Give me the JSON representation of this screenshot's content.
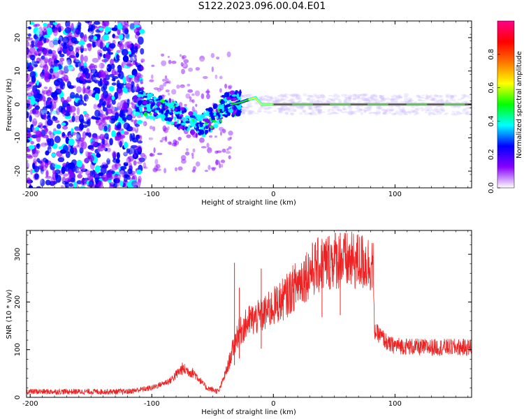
{
  "title": "S122.2023.096.00.04.E01",
  "chart_data": [
    {
      "type": "heatmap",
      "xlabel": "Height of straight line (km)",
      "ylabel": "Frequency (Hz)",
      "xlim": [
        -203,
        163
      ],
      "ylim": [
        -25,
        25
      ],
      "xticks": [
        -200,
        -100,
        0,
        100
      ],
      "yticks": [
        -20,
        -10,
        0,
        10,
        20
      ],
      "colorbar": {
        "label": "Normalized spectral amplitude",
        "range": [
          0.0,
          1.0
        ],
        "ticks": [
          0.0,
          0.2,
          0.4,
          0.6,
          0.8
        ],
        "colors": [
          "#ffffff",
          "#8800ff",
          "#0000ff",
          "#00ffff",
          "#00ff00",
          "#ffff00",
          "#ff7700",
          "#ff0000",
          "#ff0088"
        ]
      },
      "ridge": [
        {
          "x": -110,
          "y": 0.5
        },
        {
          "x": -95,
          "y": -1
        },
        {
          "x": -80,
          "y": -3
        },
        {
          "x": -68,
          "y": -6
        },
        {
          "x": -58,
          "y": -6
        },
        {
          "x": -50,
          "y": -4
        },
        {
          "x": -42,
          "y": -1
        },
        {
          "x": -35,
          "y": 0
        },
        {
          "x": -28,
          "y": 0.5
        },
        {
          "x": -20,
          "y": 1.5
        },
        {
          "x": -15,
          "y": 2
        },
        {
          "x": -10,
          "y": 0
        },
        {
          "x": 0,
          "y": 0
        },
        {
          "x": 50,
          "y": 0
        },
        {
          "x": 100,
          "y": 0
        },
        {
          "x": 163,
          "y": 0
        }
      ]
    },
    {
      "type": "line",
      "xlabel": "Height of straight line (km)",
      "ylabel": "SNR (10 * v/v)",
      "xlim": [
        -203,
        163
      ],
      "ylim": [
        0,
        350
      ],
      "xticks": [
        -200,
        -100,
        0,
        100
      ],
      "yticks": [
        0,
        100,
        200,
        300
      ],
      "color": "#ee2222",
      "envelope": [
        {
          "x": -203,
          "y": 12
        },
        {
          "x": -120,
          "y": 12
        },
        {
          "x": -100,
          "y": 20
        },
        {
          "x": -85,
          "y": 35
        },
        {
          "x": -75,
          "y": 60
        },
        {
          "x": -65,
          "y": 50
        },
        {
          "x": -55,
          "y": 20
        },
        {
          "x": -45,
          "y": 12
        },
        {
          "x": -38,
          "y": 60
        },
        {
          "x": -30,
          "y": 130
        },
        {
          "x": -20,
          "y": 160
        },
        {
          "x": -10,
          "y": 170
        },
        {
          "x": 0,
          "y": 190
        },
        {
          "x": 10,
          "y": 210
        },
        {
          "x": 20,
          "y": 240
        },
        {
          "x": 30,
          "y": 265
        },
        {
          "x": 40,
          "y": 280
        },
        {
          "x": 50,
          "y": 290
        },
        {
          "x": 60,
          "y": 285
        },
        {
          "x": 70,
          "y": 285
        },
        {
          "x": 82,
          "y": 280
        },
        {
          "x": 83,
          "y": 140
        },
        {
          "x": 90,
          "y": 125
        },
        {
          "x": 95,
          "y": 110
        },
        {
          "x": 120,
          "y": 105
        },
        {
          "x": 163,
          "y": 105
        }
      ],
      "spikes": [
        {
          "x": -32,
          "y": 282
        },
        {
          "x": -28,
          "y": 230
        },
        {
          "x": -10,
          "y": 270
        },
        {
          "x": 55,
          "y": 345
        },
        {
          "x": 40,
          "y": 330
        }
      ]
    }
  ]
}
